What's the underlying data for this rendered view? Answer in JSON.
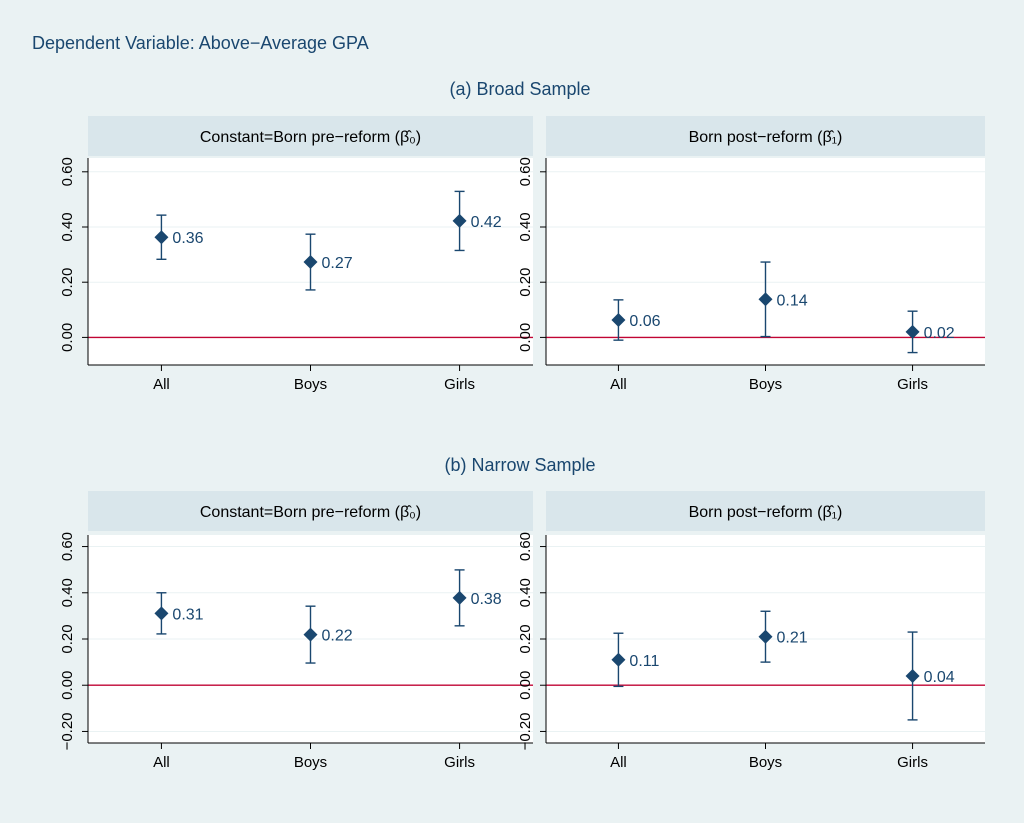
{
  "header": {
    "main_title": "Dependent Variable: Above−Average GPA"
  },
  "sections": [
    {
      "title": "(a) Broad Sample"
    },
    {
      "title": "(b) Narrow Sample"
    }
  ],
  "colors": {
    "background": "#eaf2f3",
    "strip": "#d9e6eb",
    "marker": "#1a476f",
    "zero_line": "#c10534",
    "grid": "#eaf2f3"
  },
  "chart_data": [
    {
      "type": "scatter",
      "section": "(a) Broad Sample",
      "panel_title": "Constant=Born pre−reform (β̂₀)",
      "categories": [
        "All",
        "Boys",
        "Girls"
      ],
      "ylim": [
        -0.1,
        0.65
      ],
      "yticks": [
        0.0,
        0.2,
        0.4,
        0.6
      ],
      "ytick_labels": [
        "0.00",
        "0.20",
        "0.40",
        "0.60"
      ],
      "points": [
        {
          "x": "All",
          "y": 0.363,
          "ci_low": 0.283,
          "ci_high": 0.443,
          "label": "0.36"
        },
        {
          "x": "Boys",
          "y": 0.273,
          "ci_low": 0.172,
          "ci_high": 0.374,
          "label": "0.27"
        },
        {
          "x": "Girls",
          "y": 0.422,
          "ci_low": 0.315,
          "ci_high": 0.529,
          "label": "0.42"
        }
      ],
      "reference_line": 0,
      "grid": true
    },
    {
      "type": "scatter",
      "section": "(a) Broad Sample",
      "panel_title": "Born post−reform (β̂₁)",
      "categories": [
        "All",
        "Boys",
        "Girls"
      ],
      "ylim": [
        -0.1,
        0.65
      ],
      "yticks": [
        0.0,
        0.2,
        0.4,
        0.6
      ],
      "ytick_labels": [
        "0.00",
        "0.20",
        "0.40",
        "0.60"
      ],
      "points": [
        {
          "x": "All",
          "y": 0.063,
          "ci_low": -0.01,
          "ci_high": 0.136,
          "label": "0.06"
        },
        {
          "x": "Boys",
          "y": 0.138,
          "ci_low": 0.003,
          "ci_high": 0.273,
          "label": "0.14"
        },
        {
          "x": "Girls",
          "y": 0.02,
          "ci_low": -0.055,
          "ci_high": 0.095,
          "label": "0.02"
        }
      ],
      "reference_line": 0,
      "grid": true
    },
    {
      "type": "scatter",
      "section": "(b) Narrow Sample",
      "panel_title": "Constant=Born pre−reform (β̂₀)",
      "categories": [
        "All",
        "Boys",
        "Girls"
      ],
      "ylim": [
        -0.25,
        0.65
      ],
      "yticks": [
        -0.2,
        0.0,
        0.2,
        0.4,
        0.6
      ],
      "ytick_labels": [
        "−0.20",
        "0.00",
        "0.20",
        "0.40",
        "0.60"
      ],
      "points": [
        {
          "x": "All",
          "y": 0.311,
          "ci_low": 0.222,
          "ci_high": 0.4,
          "label": "0.31"
        },
        {
          "x": "Boys",
          "y": 0.219,
          "ci_low": 0.096,
          "ci_high": 0.342,
          "label": "0.22"
        },
        {
          "x": "Girls",
          "y": 0.378,
          "ci_low": 0.257,
          "ci_high": 0.499,
          "label": "0.38"
        }
      ],
      "reference_line": 0,
      "grid": true
    },
    {
      "type": "scatter",
      "section": "(b) Narrow Sample",
      "panel_title": "Born post−reform (β̂₁)",
      "categories": [
        "All",
        "Boys",
        "Girls"
      ],
      "ylim": [
        -0.25,
        0.65
      ],
      "yticks": [
        -0.2,
        0.0,
        0.2,
        0.4,
        0.6
      ],
      "ytick_labels": [
        "−0.20",
        "0.00",
        "0.20",
        "0.40",
        "0.60"
      ],
      "points": [
        {
          "x": "All",
          "y": 0.11,
          "ci_low": -0.005,
          "ci_high": 0.225,
          "label": "0.11"
        },
        {
          "x": "Boys",
          "y": 0.21,
          "ci_low": 0.1,
          "ci_high": 0.32,
          "label": "0.21"
        },
        {
          "x": "Girls",
          "y": 0.04,
          "ci_low": -0.15,
          "ci_high": 0.23,
          "label": "0.04"
        }
      ],
      "reference_line": 0,
      "grid": true
    }
  ]
}
